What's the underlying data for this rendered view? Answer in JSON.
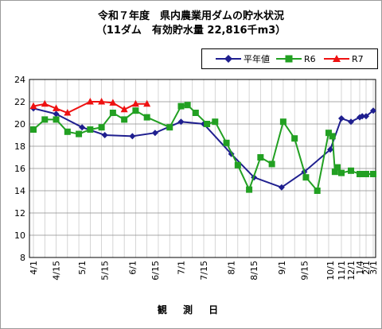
{
  "chart_data": {
    "type": "line",
    "title": "令和７年度　県内農業用ダムの貯水状況",
    "subtitle": "（11ダム　有効貯水量 22,816千m3）",
    "xlabel": "観 測 日",
    "ylabel": "",
    "ylim": [
      8,
      24
    ],
    "yticks": [
      8,
      10,
      12,
      14,
      16,
      18,
      20,
      22,
      24
    ],
    "grid": true,
    "legend_position": "top-right",
    "x_tick_labels": [
      "4/1",
      "4/15",
      "5/1",
      "5/15",
      "6/1",
      "6/15",
      "7/1",
      "7/15",
      "8/1",
      "8/15",
      "9/1",
      "9/15",
      "10/1",
      "11/1",
      "12/1",
      "1/4",
      "2/1",
      "3/1"
    ],
    "series": [
      {
        "name": "平年値",
        "color": "#1f1f8f",
        "marker": "diamond",
        "x": [
          "4/1",
          "4/15",
          "5/1",
          "5/15",
          "6/1",
          "6/15",
          "7/1",
          "7/15",
          "8/1",
          "8/15",
          "9/1",
          "9/15",
          "10/1",
          "11/1",
          "12/1",
          "1/4",
          "1/15",
          "2/1",
          "3/1"
        ],
        "y": [
          21.4,
          20.9,
          19.7,
          19.0,
          18.9,
          19.2,
          20.2,
          20.0,
          17.3,
          15.2,
          14.3,
          15.7,
          17.7,
          20.5,
          20.2,
          20.6,
          20.7,
          20.7,
          21.2
        ]
      },
      {
        "name": "R6",
        "color": "#22a022",
        "marker": "square",
        "x": [
          "4/1",
          "4/8",
          "4/15",
          "4/22",
          "4/29",
          "5/6",
          "5/13",
          "5/20",
          "5/27",
          "6/3",
          "6/10",
          "6/24",
          "7/1",
          "7/5",
          "7/10",
          "7/17",
          "7/22",
          "7/29",
          "8/5",
          "8/12",
          "8/19",
          "8/26",
          "9/2",
          "9/9",
          "9/16",
          "9/23",
          "9/30",
          "10/7",
          "10/14",
          "10/21",
          "11/1",
          "12/1",
          "1/4",
          "1/15",
          "2/1",
          "3/1"
        ],
        "y": [
          19.5,
          20.4,
          20.4,
          19.3,
          19.1,
          19.5,
          19.7,
          21.0,
          20.4,
          21.2,
          20.6,
          19.7,
          21.6,
          21.7,
          21.0,
          20.0,
          20.2,
          18.3,
          16.3,
          14.1,
          17.0,
          16.4,
          20.2,
          18.7,
          15.2,
          14.0,
          19.2,
          18.9,
          15.7,
          16.1,
          15.6,
          15.8,
          15.5,
          15.5,
          15.5,
          15.5
        ]
      },
      {
        "name": "R7",
        "color": "#ee1111",
        "marker": "triangle",
        "x": [
          "4/1",
          "4/8",
          "4/15",
          "4/22",
          "5/6",
          "5/13",
          "5/20",
          "5/27",
          "6/3",
          "6/10"
        ],
        "y": [
          21.6,
          21.8,
          21.4,
          21.0,
          22.0,
          22.0,
          21.9,
          21.3,
          21.8,
          21.8
        ]
      }
    ]
  }
}
